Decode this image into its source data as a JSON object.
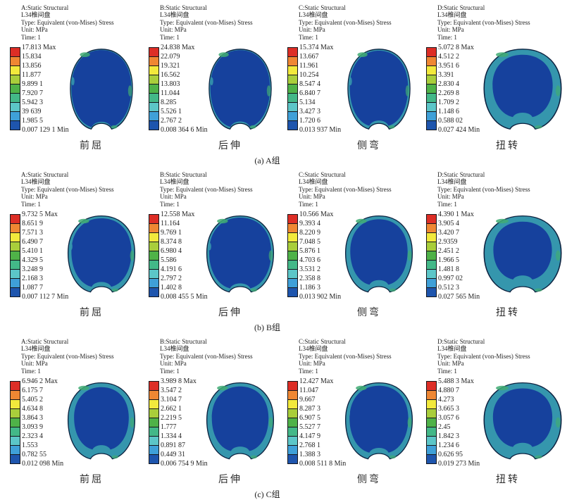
{
  "common": {
    "part": "L34椎间盘",
    "type": "Type: Equivalent (von-Mises) Stress",
    "unit": "Unit: MPa",
    "time": "Time: 1"
  },
  "colors": {
    "legend": [
      "#dd2e26",
      "#ef8733",
      "#f2e93c",
      "#a9ce3b",
      "#4fb248",
      "#43b888",
      "#5cc6c8",
      "#3fa0d8",
      "#1e55ad"
    ],
    "disc_core": "#16419d",
    "disc_rim": "#3596ad",
    "fleck": "#41ab74",
    "outline": "#0d2240"
  },
  "groups": [
    {
      "caption": "(a) A组",
      "panels": [
        {
          "title": "A:Static Structural",
          "label": "前屈",
          "rim": 0.965,
          "wide": false,
          "legend": [
            "17.813 Max",
            "15.834",
            "13.856",
            "11.877",
            "9.899 1",
            "7.920 7",
            "5.942 3",
            "39 639",
            "1.985 5",
            "0.007 129 1 Min"
          ]
        },
        {
          "title": "B:Static Structural",
          "label": "后伸",
          "rim": 0.96,
          "wide": false,
          "legend": [
            "24.838 Max",
            "22.079",
            "19.321",
            "16.562",
            "13.803",
            "11.044",
            "8.285",
            "5.526 1",
            "2.767 2",
            "0.008 364 6 Min"
          ]
        },
        {
          "title": "C:Static Structural",
          "label": "侧弯",
          "rim": 0.94,
          "wide": false,
          "legend": [
            "15.374 Max",
            "13.667",
            "11.961",
            "10.254",
            "8.547 4",
            "6.840 7",
            "5.134",
            "3.427 3",
            "1.720 6",
            "0.013 937 Min"
          ]
        },
        {
          "title": "D:Static Structural",
          "label": "扭转",
          "rim": 0.78,
          "wide": true,
          "legend": [
            "5.072 8 Max",
            "4.512 2",
            "3.951 6",
            "3.391",
            "2.830 4",
            "2.269 8",
            "1.709 2",
            "1.148 6",
            "0.588 02",
            "0.027 424 Min"
          ]
        }
      ]
    },
    {
      "caption": "(b) B组",
      "panels": [
        {
          "title": "A:Static Structural",
          "label": "前屈",
          "rim": 0.9,
          "wide": false,
          "legend": [
            "9.732 5 Max",
            "8.651 9",
            "7.571 3",
            "6.490 7",
            "5.410 1",
            "4.329 5",
            "3.248 9",
            "2.168 3",
            "1.087 7",
            "0.007 112 7 Min"
          ]
        },
        {
          "title": "B:Static Structural",
          "label": "后伸",
          "rim": 0.93,
          "wide": false,
          "legend": [
            "12.558 Max",
            "11.164",
            "9.769 1",
            "8.374 8",
            "6.980 4",
            "5.586",
            "4.191 6",
            "2.797 2",
            "1.402 8",
            "0.008 455 5 Min"
          ]
        },
        {
          "title": "C:Static Structural",
          "label": "侧弯",
          "rim": 0.86,
          "wide": false,
          "legend": [
            "10.566 Max",
            "9.393 4",
            "8.220 9",
            "7.048 5",
            "5.876 1",
            "4.703 6",
            "3.531 2",
            "2.358 8",
            "1.186 3",
            "0.013 902 Min"
          ]
        },
        {
          "title": "D:Static Structural",
          "label": "扭转",
          "rim": 0.76,
          "wide": true,
          "legend": [
            "4.390 1 Max",
            "3.905 4",
            "3.420 7",
            "2.9359",
            "2.451 2",
            "1.966 5",
            "1.481 8",
            "0.997 02",
            "0.512 3",
            "0.027 565 Min"
          ]
        }
      ]
    },
    {
      "caption": "(c) C组",
      "panels": [
        {
          "title": "A:Static Structural",
          "label": "前屈",
          "rim": 0.82,
          "wide": false,
          "legend": [
            "6.946 2 Max",
            "6.175 7",
            "5.405 2",
            "4.634 8",
            "3.864 3",
            "3.093 9",
            "2.323 4",
            "1.553",
            "0.782 55",
            "0.012 098 Min"
          ]
        },
        {
          "title": "B:Static Structural",
          "label": "后伸",
          "rim": 0.85,
          "wide": false,
          "legend": [
            "3.989 8 Max",
            "3.547 2",
            "3.104 7",
            "2.662 1",
            "2.219 5",
            "1.777",
            "1.334 4",
            "0.891 87",
            "0.449 31",
            "0.006 754 9 Min"
          ]
        },
        {
          "title": "C:Static Structural",
          "label": "侧弯",
          "rim": 0.88,
          "wide": false,
          "legend": [
            "12.427 Max",
            "11.047",
            "9.667",
            "8.287 3",
            "6.907 5",
            "5.527 7",
            "4.147 9",
            "2.768 1",
            "1.388 3",
            "0.008 511 8 Min"
          ]
        },
        {
          "title": "D:Static Structural",
          "label": "扭转",
          "rim": 0.77,
          "wide": true,
          "legend": [
            "5.488 3 Max",
            "4.880 7",
            "4.273",
            "3.665 3",
            "3.057 6",
            "2.45",
            "1.842 3",
            "1.234 6",
            "0.626 95",
            "0.019 273 Min"
          ]
        }
      ]
    }
  ],
  "chart_data": [
    {
      "type": "heatmap",
      "group": "A组",
      "condition": "前屈",
      "analysis": "A:Static Structural",
      "part": "L34椎间盘",
      "quantity": "Equivalent (von-Mises) Stress",
      "unit": "MPa",
      "time": 1,
      "max": 17.813,
      "min": 0.0071291,
      "legend_ticks": [
        "17.813 Max",
        "15.834",
        "13.856",
        "11.877",
        "9.899 1",
        "7.920 7",
        "5.942 3",
        "39 639",
        "1.985 5",
        "0.007 129 1 Min"
      ]
    },
    {
      "type": "heatmap",
      "group": "A组",
      "condition": "后伸",
      "analysis": "B:Static Structural",
      "part": "L34椎间盘",
      "quantity": "Equivalent (von-Mises) Stress",
      "unit": "MPa",
      "time": 1,
      "max": 24.838,
      "min": 0.0083646,
      "legend_ticks": [
        "24.838 Max",
        "22.079",
        "19.321",
        "16.562",
        "13.803",
        "11.044",
        "8.285",
        "5.526 1",
        "2.767 2",
        "0.008 364 6 Min"
      ]
    },
    {
      "type": "heatmap",
      "group": "A组",
      "condition": "侧弯",
      "analysis": "C:Static Structural",
      "part": "L34椎间盘",
      "quantity": "Equivalent (von-Mises) Stress",
      "unit": "MPa",
      "time": 1,
      "max": 15.374,
      "min": 0.013937,
      "legend_ticks": [
        "15.374 Max",
        "13.667",
        "11.961",
        "10.254",
        "8.547 4",
        "6.840 7",
        "5.134",
        "3.427 3",
        "1.720 6",
        "0.013 937 Min"
      ]
    },
    {
      "type": "heatmap",
      "group": "A组",
      "condition": "扭转",
      "analysis": "D:Static Structural",
      "part": "L34椎间盘",
      "quantity": "Equivalent (von-Mises) Stress",
      "unit": "MPa",
      "time": 1,
      "max": 5.0728,
      "min": 0.027424,
      "legend_ticks": [
        "5.072 8 Max",
        "4.512 2",
        "3.951 6",
        "3.391",
        "2.830 4",
        "2.269 8",
        "1.709 2",
        "1.148 6",
        "0.588 02",
        "0.027 424 Min"
      ]
    },
    {
      "type": "heatmap",
      "group": "B组",
      "condition": "前屈",
      "analysis": "A:Static Structural",
      "part": "L34椎间盘",
      "quantity": "Equivalent (von-Mises) Stress",
      "unit": "MPa",
      "time": 1,
      "max": 9.7325,
      "min": 0.0071127,
      "legend_ticks": [
        "9.732 5 Max",
        "8.651 9",
        "7.571 3",
        "6.490 7",
        "5.410 1",
        "4.329 5",
        "3.248 9",
        "2.168 3",
        "1.087 7",
        "0.007 112 7 Min"
      ]
    },
    {
      "type": "heatmap",
      "group": "B组",
      "condition": "后伸",
      "analysis": "B:Static Structural",
      "part": "L34椎间盘",
      "quantity": "Equivalent (von-Mises) Stress",
      "unit": "MPa",
      "time": 1,
      "max": 12.558,
      "min": 0.0084555,
      "legend_ticks": [
        "12.558 Max",
        "11.164",
        "9.769 1",
        "8.374 8",
        "6.980 4",
        "5.586",
        "4.191 6",
        "2.797 2",
        "1.402 8",
        "0.008 455 5 Min"
      ]
    },
    {
      "type": "heatmap",
      "group": "B组",
      "condition": "侧弯",
      "analysis": "C:Static Structural",
      "part": "L34椎间盘",
      "quantity": "Equivalent (von-Mises) Stress",
      "unit": "MPa",
      "time": 1,
      "max": 10.566,
      "min": 0.013902,
      "legend_ticks": [
        "10.566 Max",
        "9.393 4",
        "8.220 9",
        "7.048 5",
        "5.876 1",
        "4.703 6",
        "3.531 2",
        "2.358 8",
        "1.186 3",
        "0.013 902 Min"
      ]
    },
    {
      "type": "heatmap",
      "group": "B组",
      "condition": "扭转",
      "analysis": "D:Static Structural",
      "part": "L34椎间盘",
      "quantity": "Equivalent (von-Mises) Stress",
      "unit": "MPa",
      "time": 1,
      "max": 4.3901,
      "min": 0.027565,
      "legend_ticks": [
        "4.390 1 Max",
        "3.905 4",
        "3.420 7",
        "2.9359",
        "2.451 2",
        "1.966 5",
        "1.481 8",
        "0.997 02",
        "0.512 3",
        "0.027 565 Min"
      ]
    },
    {
      "type": "heatmap",
      "group": "C组",
      "condition": "前屈",
      "analysis": "A:Static Structural",
      "part": "L34椎间盘",
      "quantity": "Equivalent (von-Mises) Stress",
      "unit": "MPa",
      "time": 1,
      "max": 6.9462,
      "min": 0.012098,
      "legend_ticks": [
        "6.946 2 Max",
        "6.175 7",
        "5.405 2",
        "4.634 8",
        "3.864 3",
        "3.093 9",
        "2.323 4",
        "1.553",
        "0.782 55",
        "0.012 098 Min"
      ]
    },
    {
      "type": "heatmap",
      "group": "C组",
      "condition": "后伸",
      "analysis": "B:Static Structural",
      "part": "L34椎间盘",
      "quantity": "Equivalent (von-Mises) Stress",
      "unit": "MPa",
      "time": 1,
      "max": 3.9898,
      "min": 0.0067549,
      "legend_ticks": [
        "3.989 8 Max",
        "3.547 2",
        "3.104 7",
        "2.662 1",
        "2.219 5",
        "1.777",
        "1.334 4",
        "0.891 87",
        "0.449 31",
        "0.006 754 9 Min"
      ]
    },
    {
      "type": "heatmap",
      "group": "C组",
      "condition": "侧弯",
      "analysis": "C:Static Structural",
      "part": "L34椎间盘",
      "quantity": "Equivalent (von-Mises) Stress",
      "unit": "MPa",
      "time": 1,
      "max": 12.427,
      "min": 0.0085118,
      "legend_ticks": [
        "12.427 Max",
        "11.047",
        "9.667",
        "8.287 3",
        "6.907 5",
        "5.527 7",
        "4.147 9",
        "2.768 1",
        "1.388 3",
        "0.008 511 8 Min"
      ]
    },
    {
      "type": "heatmap",
      "group": "C组",
      "condition": "扭转",
      "analysis": "D:Static Structural",
      "part": "L34椎间盘",
      "quantity": "Equivalent (von-Mises) Stress",
      "unit": "MPa",
      "time": 1,
      "max": 5.4883,
      "min": 0.019273,
      "legend_ticks": [
        "5.488 3 Max",
        "4.880 7",
        "4.273",
        "3.665 3",
        "3.057 6",
        "2.45",
        "1.842 3",
        "1.234 6",
        "0.626 95",
        "0.019 273 Min"
      ]
    }
  ]
}
